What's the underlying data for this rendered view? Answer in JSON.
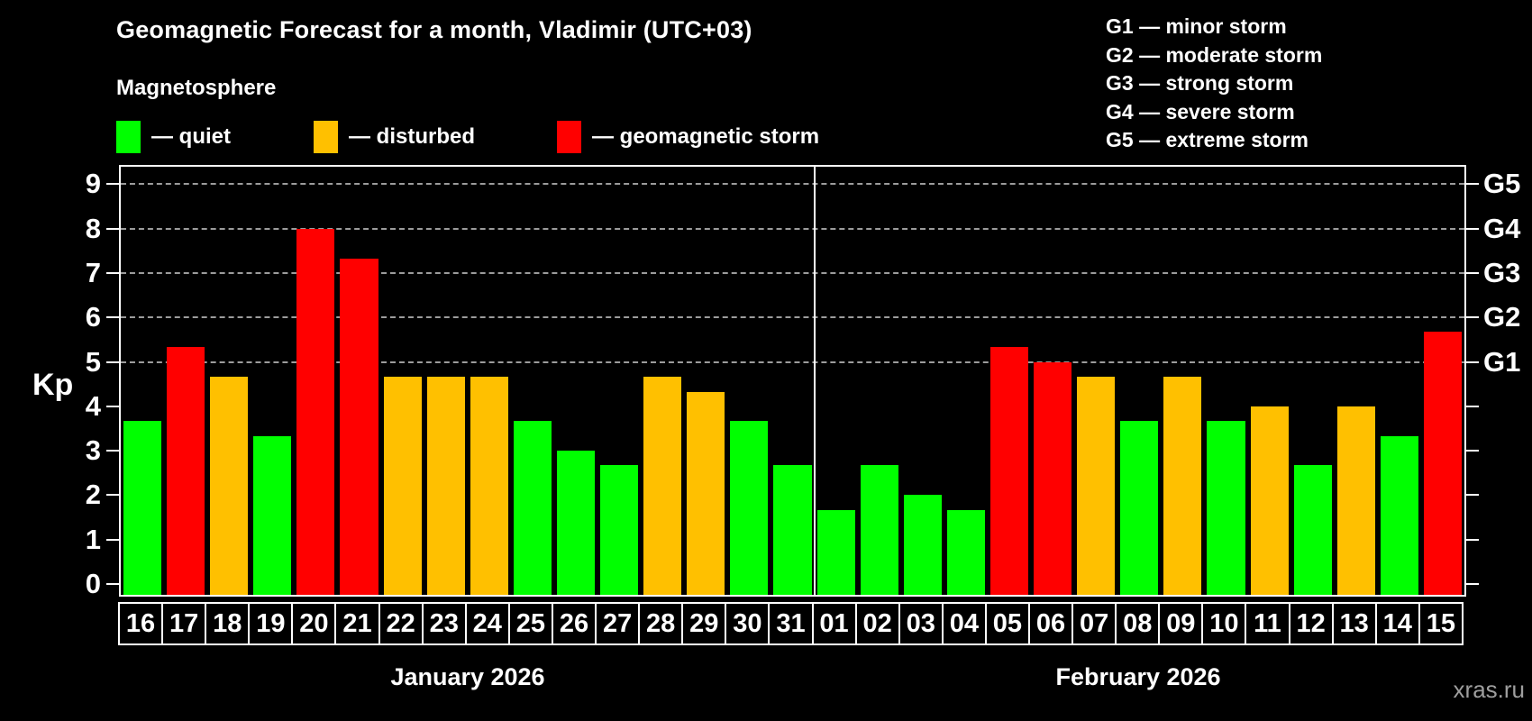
{
  "title": "Geomagnetic Forecast for a month, Vladimir (UTC+03)",
  "subtitle": "Magnetosphere",
  "legend": [
    {
      "id": "quiet",
      "label": "— quiet",
      "color": "#00ff00"
    },
    {
      "id": "disturbed",
      "label": "— disturbed",
      "color": "#ffc000"
    },
    {
      "id": "storm",
      "label": "— geomagnetic storm",
      "color": "#ff0000"
    }
  ],
  "g_legend": [
    "G1 — minor storm",
    "G2 — moderate storm",
    "G3 — strong storm",
    "G4 — severe storm",
    "G5 — extreme storm"
  ],
  "watermark": "xras.ru",
  "chart_data": {
    "type": "bar",
    "ylabel": "Kp",
    "ylim": [
      0,
      9
    ],
    "yticks": [
      0,
      1,
      2,
      3,
      4,
      5,
      6,
      7,
      8,
      9
    ],
    "gridlines": [
      5,
      6,
      7,
      8,
      9
    ],
    "grid_style": "horizontal dashed gray at storm levels only",
    "legend_position": "top-left",
    "right_axis": [
      {
        "value": 5,
        "label": "G1"
      },
      {
        "value": 6,
        "label": "G2"
      },
      {
        "value": 7,
        "label": "G3"
      },
      {
        "value": 8,
        "label": "G4"
      },
      {
        "value": 9,
        "label": "G5"
      }
    ],
    "status_colors": {
      "quiet": "#00ff00",
      "disturbed": "#ffc000",
      "storm": "#ff0000"
    },
    "months": [
      {
        "label": "January 2026",
        "bars": [
          {
            "day": "16",
            "kp": 3.67,
            "status": "quiet"
          },
          {
            "day": "17",
            "kp": 5.33,
            "status": "storm"
          },
          {
            "day": "18",
            "kp": 4.67,
            "status": "disturbed"
          },
          {
            "day": "19",
            "kp": 3.33,
            "status": "quiet"
          },
          {
            "day": "20",
            "kp": 8.0,
            "status": "storm"
          },
          {
            "day": "21",
            "kp": 7.33,
            "status": "storm"
          },
          {
            "day": "22",
            "kp": 4.67,
            "status": "disturbed"
          },
          {
            "day": "23",
            "kp": 4.67,
            "status": "disturbed"
          },
          {
            "day": "24",
            "kp": 4.67,
            "status": "disturbed"
          },
          {
            "day": "25",
            "kp": 3.67,
            "status": "quiet"
          },
          {
            "day": "26",
            "kp": 3.0,
            "status": "quiet"
          },
          {
            "day": "27",
            "kp": 2.67,
            "status": "quiet"
          },
          {
            "day": "28",
            "kp": 4.67,
            "status": "disturbed"
          },
          {
            "day": "29",
            "kp": 4.33,
            "status": "disturbed"
          },
          {
            "day": "30",
            "kp": 3.67,
            "status": "quiet"
          },
          {
            "day": "31",
            "kp": 2.67,
            "status": "quiet"
          }
        ]
      },
      {
        "label": "February 2026",
        "bars": [
          {
            "day": "01",
            "kp": 1.67,
            "status": "quiet"
          },
          {
            "day": "02",
            "kp": 2.67,
            "status": "quiet"
          },
          {
            "day": "03",
            "kp": 2.0,
            "status": "quiet"
          },
          {
            "day": "04",
            "kp": 1.67,
            "status": "quiet"
          },
          {
            "day": "05",
            "kp": 5.33,
            "status": "storm"
          },
          {
            "day": "06",
            "kp": 5.0,
            "status": "storm"
          },
          {
            "day": "07",
            "kp": 4.67,
            "status": "disturbed"
          },
          {
            "day": "08",
            "kp": 3.67,
            "status": "quiet"
          },
          {
            "day": "09",
            "kp": 4.67,
            "status": "disturbed"
          },
          {
            "day": "10",
            "kp": 3.67,
            "status": "quiet"
          },
          {
            "day": "11",
            "kp": 4.0,
            "status": "disturbed"
          },
          {
            "day": "12",
            "kp": 2.67,
            "status": "quiet"
          },
          {
            "day": "13",
            "kp": 4.0,
            "status": "disturbed"
          },
          {
            "day": "14",
            "kp": 3.33,
            "status": "quiet"
          },
          {
            "day": "15",
            "kp": 5.67,
            "status": "storm"
          }
        ]
      }
    ]
  }
}
